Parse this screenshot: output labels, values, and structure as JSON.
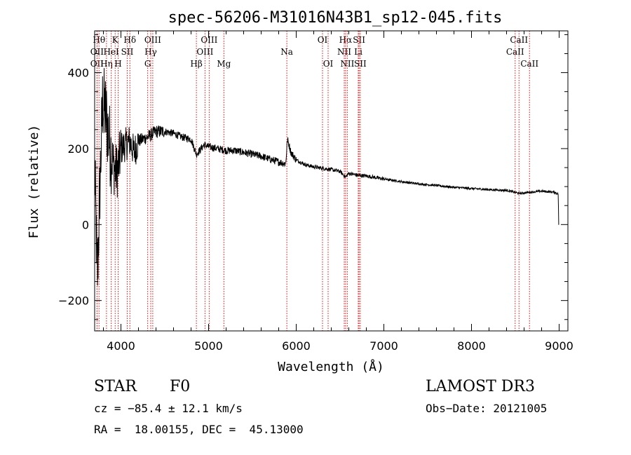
{
  "chart_data": {
    "type": "line",
    "title": "spec-56206-M31016N43B1_sp12-045.fits",
    "xlabel": "Wavelength (Å)",
    "ylabel": "Flux (relative)",
    "xlim": [
      3700,
      9100
    ],
    "ylim": [
      -280,
      510
    ],
    "x_ticks": [
      4000,
      5000,
      6000,
      7000,
      8000,
      9000
    ],
    "x_tick_labels": [
      "4000",
      "5000",
      "6000",
      "7000",
      "8000",
      "9000"
    ],
    "y_ticks": [
      -200,
      0,
      200,
      400
    ],
    "y_tick_labels": [
      "−200",
      "0",
      "200",
      "400"
    ],
    "line_color": "#ff0000",
    "spectrum_color": "#000000",
    "spectrum_knots": [
      [
        3700,
        150
      ],
      [
        3730,
        -150
      ],
      [
        3760,
        100
      ],
      [
        3790,
        320
      ],
      [
        3820,
        300
      ],
      [
        3850,
        250
      ],
      [
        3880,
        200
      ],
      [
        3920,
        150
      ],
      [
        3950,
        140
      ],
      [
        3970,
        150
      ],
      [
        4000,
        200
      ],
      [
        4050,
        210
      ],
      [
        4100,
        220
      ],
      [
        4150,
        190
      ],
      [
        4200,
        220
      ],
      [
        4300,
        230
      ],
      [
        4400,
        245
      ],
      [
        4500,
        245
      ],
      [
        4600,
        240
      ],
      [
        4700,
        230
      ],
      [
        4800,
        225
      ],
      [
        4861,
        185
      ],
      [
        4950,
        210
      ],
      [
        5000,
        205
      ],
      [
        5100,
        200
      ],
      [
        5200,
        195
      ],
      [
        5300,
        195
      ],
      [
        5400,
        190
      ],
      [
        5500,
        185
      ],
      [
        5600,
        180
      ],
      [
        5700,
        172
      ],
      [
        5800,
        165
      ],
      [
        5880,
        160
      ],
      [
        5900,
        225
      ],
      [
        5940,
        190
      ],
      [
        6000,
        170
      ],
      [
        6100,
        158
      ],
      [
        6200,
        152
      ],
      [
        6300,
        148
      ],
      [
        6400,
        145
      ],
      [
        6500,
        140
      ],
      [
        6562,
        125
      ],
      [
        6600,
        135
      ],
      [
        6700,
        130
      ],
      [
        6800,
        128
      ],
      [
        7000,
        120
      ],
      [
        7200,
        113
      ],
      [
        7400,
        107
      ],
      [
        7600,
        103
      ],
      [
        7800,
        98
      ],
      [
        8000,
        95
      ],
      [
        8200,
        92
      ],
      [
        8400,
        90
      ],
      [
        8498,
        85
      ],
      [
        8542,
        82
      ],
      [
        8662,
        85
      ],
      [
        8800,
        88
      ],
      [
        8950,
        85
      ],
      [
        8990,
        80
      ],
      [
        8995,
        0
      ],
      [
        9000,
        0
      ]
    ],
    "lines": [
      {
        "name": "OII",
        "wave": 3727,
        "row": 3
      },
      {
        "name": "Hθ",
        "wave": 3750,
        "row": 1
      },
      {
        "name": "OII",
        "wave": 3727,
        "row": 2
      },
      {
        "name": "Hη",
        "wave": 3835,
        "row": 3
      },
      {
        "name": "K",
        "wave": 3934,
        "row": 1
      },
      {
        "name": "HeI",
        "wave": 3889,
        "row": 2
      },
      {
        "name": "H",
        "wave": 3968,
        "row": 3
      },
      {
        "name": "Hδ",
        "wave": 4102,
        "row": 1
      },
      {
        "name": "SII",
        "wave": 4072,
        "row": 2
      },
      {
        "name": "OIII",
        "wave": 4363,
        "row": 1
      },
      {
        "name": "Hγ",
        "wave": 4340,
        "row": 2
      },
      {
        "name": "G",
        "wave": 4305,
        "row": 3
      },
      {
        "name": "Hβ",
        "wave": 4861,
        "row": 3
      },
      {
        "name": "OIII",
        "wave": 5007,
        "row": 1
      },
      {
        "name": "OIII",
        "wave": 4959,
        "row": 2
      },
      {
        "name": "Mg",
        "wave": 5175,
        "row": 3
      },
      {
        "name": "Na",
        "wave": 5893,
        "row": 2
      },
      {
        "name": "OI",
        "wave": 6300,
        "row": 1
      },
      {
        "name": "OI",
        "wave": 6364,
        "row": 3
      },
      {
        "name": "Hα",
        "wave": 6563,
        "row": 1
      },
      {
        "name": "NII",
        "wave": 6548,
        "row": 2
      },
      {
        "name": "NII",
        "wave": 6583,
        "row": 3
      },
      {
        "name": "SII",
        "wave": 6717,
        "row": 1
      },
      {
        "name": "Li",
        "wave": 6708,
        "row": 2
      },
      {
        "name": "SII",
        "wave": 6731,
        "row": 3
      },
      {
        "name": "CaII",
        "wave": 8542,
        "row": 1
      },
      {
        "name": "CaII",
        "wave": 8498,
        "row": 2
      },
      {
        "name": "CaII",
        "wave": 8662,
        "row": 3
      }
    ]
  },
  "info": {
    "object_class": "STAR",
    "subclass": "F0",
    "survey": "LAMOST DR3",
    "cz": "cz = −85.4 ± 12.1 km/s",
    "obs_date": "Obs−Date: 20121005",
    "coords": "RA =  18.00155, DEC =  45.13000"
  }
}
